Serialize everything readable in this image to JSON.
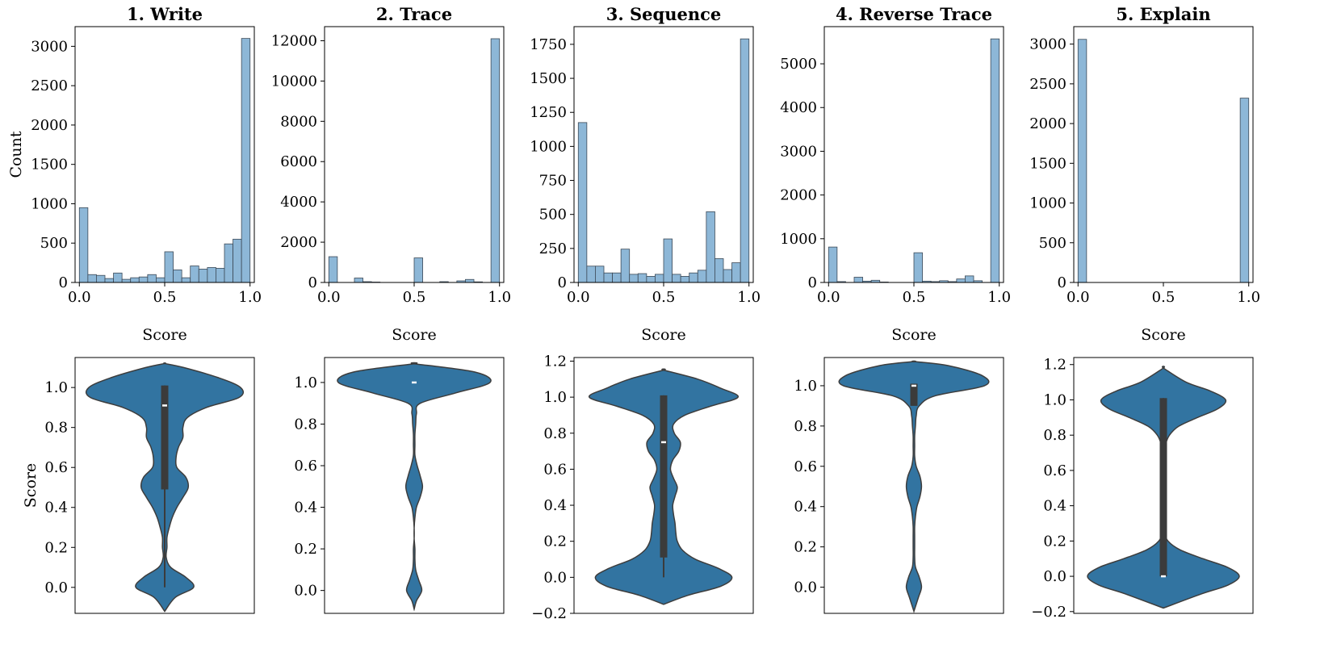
{
  "figure": {
    "background": "#ffffff"
  },
  "colors": {
    "hist_fill": "#8db7d7",
    "hist_edge": "#3d4a57",
    "violin_fill": "#3274a1",
    "violin_edge": "#3d3d3d",
    "box": "#3b3b3b",
    "median": "#ffffff"
  },
  "chart_data": [
    {
      "type": "bar",
      "subtype": "histogram",
      "title": "1. Write",
      "xlabel": "Score",
      "ylabel": "Count",
      "xlim": [
        -0.025,
        1.025
      ],
      "ylim": [
        0,
        3250
      ],
      "xticks": [
        "0.0",
        "0.5",
        "1.0"
      ],
      "yticks": [
        "0",
        "500",
        "1000",
        "1500",
        "2000",
        "2500",
        "3000"
      ],
      "bin_range": [
        0,
        1
      ],
      "values": [
        950,
        100,
        90,
        50,
        120,
        40,
        60,
        70,
        100,
        60,
        390,
        160,
        60,
        210,
        170,
        190,
        180,
        490,
        550,
        3100
      ]
    },
    {
      "type": "bar",
      "subtype": "histogram",
      "title": "2. Trace",
      "xlabel": "Score",
      "ylabel": "",
      "xlim": [
        -0.025,
        1.025
      ],
      "ylim": [
        0,
        12700
      ],
      "xticks": [
        "0.0",
        "0.5",
        "1.0"
      ],
      "yticks": [
        "0",
        "2000",
        "4000",
        "6000",
        "8000",
        "10000",
        "12000"
      ],
      "bin_range": [
        0,
        1
      ],
      "values": [
        1280,
        0,
        0,
        220,
        40,
        20,
        0,
        0,
        0,
        0,
        1220,
        0,
        0,
        40,
        0,
        80,
        150,
        30,
        0,
        12100
      ]
    },
    {
      "type": "bar",
      "subtype": "histogram",
      "title": "3. Sequence",
      "xlabel": "Score",
      "ylabel": "",
      "xlim": [
        -0.025,
        1.025
      ],
      "ylim": [
        0,
        1880
      ],
      "xticks": [
        "0.0",
        "0.5",
        "1.0"
      ],
      "yticks": [
        "0",
        "250",
        "500",
        "750",
        "1000",
        "1250",
        "1500",
        "1750"
      ],
      "bin_range": [
        0,
        1
      ],
      "values": [
        1175,
        120,
        120,
        70,
        70,
        245,
        60,
        65,
        45,
        60,
        320,
        60,
        45,
        70,
        90,
        520,
        175,
        95,
        145,
        1790
      ]
    },
    {
      "type": "bar",
      "subtype": "histogram",
      "title": "4. Reverse Trace",
      "xlabel": "Score",
      "ylabel": "",
      "xlim": [
        -0.025,
        1.025
      ],
      "ylim": [
        0,
        5850
      ],
      "xticks": [
        "0.0",
        "0.5",
        "1.0"
      ],
      "yticks": [
        "0",
        "1000",
        "2000",
        "3000",
        "4000",
        "5000"
      ],
      "bin_range": [
        0,
        1
      ],
      "values": [
        810,
        20,
        0,
        120,
        30,
        50,
        10,
        0,
        0,
        0,
        680,
        30,
        20,
        40,
        20,
        80,
        150,
        40,
        0,
        5570
      ]
    },
    {
      "type": "bar",
      "subtype": "histogram",
      "title": "5. Explain",
      "xlabel": "Score",
      "ylabel": "",
      "xlim": [
        -0.025,
        1.025
      ],
      "ylim": [
        0,
        3220
      ],
      "xticks": [
        "0.0",
        "0.5",
        "1.0"
      ],
      "yticks": [
        "0",
        "500",
        "1000",
        "1500",
        "2000",
        "2500",
        "3000"
      ],
      "bin_range": [
        0,
        1
      ],
      "values": [
        3060,
        0,
        0,
        0,
        0,
        0,
        0,
        0,
        0,
        0,
        0,
        0,
        0,
        0,
        0,
        0,
        0,
        0,
        0,
        2320
      ]
    },
    {
      "type": "violin",
      "ylabel": "Score",
      "ylim": [
        -0.13,
        1.15
      ],
      "yticks": [
        "0.0",
        "0.2",
        "0.4",
        "0.6",
        "0.8",
        "1.0"
      ],
      "density": {
        "y": [
          -0.12,
          -0.05,
          0.0,
          0.05,
          0.1,
          0.15,
          0.2,
          0.25,
          0.3,
          0.35,
          0.4,
          0.45,
          0.5,
          0.55,
          0.6,
          0.65,
          0.7,
          0.75,
          0.8,
          0.85,
          0.9,
          0.95,
          1.0,
          1.05,
          1.1,
          1.12
        ],
        "width": [
          0.0,
          0.14,
          0.38,
          0.28,
          0.08,
          0.02,
          0.03,
          0.03,
          0.06,
          0.1,
          0.16,
          0.24,
          0.31,
          0.28,
          0.16,
          0.15,
          0.18,
          0.24,
          0.24,
          0.3,
          0.55,
          0.98,
          1.0,
          0.7,
          0.25,
          0.0
        ]
      },
      "whisker": [
        0.0,
        1.01
      ],
      "box": [
        0.49,
        1.01
      ],
      "median": 0.91
    },
    {
      "type": "violin",
      "ylabel": "",
      "ylim": [
        -0.11,
        1.12
      ],
      "yticks": [
        "0.0",
        "0.2",
        "0.4",
        "0.6",
        "0.8",
        "1.0"
      ],
      "density": {
        "y": [
          -0.09,
          -0.05,
          0.0,
          0.05,
          0.1,
          0.15,
          0.2,
          0.25,
          0.3,
          0.35,
          0.4,
          0.45,
          0.5,
          0.55,
          0.6,
          0.65,
          0.7,
          0.75,
          0.8,
          0.85,
          0.9,
          0.95,
          1.0,
          1.05,
          1.09
        ],
        "width": [
          0.0,
          0.03,
          0.1,
          0.06,
          0.02,
          0.01,
          0.01,
          0.0,
          0.0,
          0.01,
          0.03,
          0.08,
          0.11,
          0.08,
          0.04,
          0.01,
          0.01,
          0.01,
          0.02,
          0.03,
          0.08,
          0.55,
          1.0,
          0.8,
          0.0
        ]
      },
      "whisker": [
        1.0,
        1.0
      ],
      "box": [
        1.0,
        1.0
      ],
      "median": 1.0
    },
    {
      "type": "violin",
      "ylabel": "",
      "ylim": [
        -0.2,
        1.22
      ],
      "yticks": [
        "−0.2",
        "0.0",
        "0.2",
        "0.4",
        "0.6",
        "0.8",
        "1.0",
        "1.2"
      ],
      "density": {
        "y": [
          -0.15,
          -0.1,
          -0.05,
          0.0,
          0.05,
          0.1,
          0.15,
          0.2,
          0.25,
          0.3,
          0.35,
          0.4,
          0.45,
          0.5,
          0.55,
          0.6,
          0.65,
          0.7,
          0.75,
          0.8,
          0.85,
          0.9,
          0.95,
          1.0,
          1.05,
          1.1,
          1.15
        ],
        "width": [
          0.0,
          0.32,
          0.75,
          0.9,
          0.72,
          0.42,
          0.25,
          0.18,
          0.16,
          0.15,
          0.13,
          0.12,
          0.15,
          0.18,
          0.13,
          0.09,
          0.12,
          0.2,
          0.22,
          0.14,
          0.13,
          0.28,
          0.62,
          0.98,
          0.75,
          0.45,
          0.0
        ]
      },
      "whisker": [
        0.0,
        1.01
      ],
      "box": [
        0.11,
        1.01
      ],
      "median": 0.75
    },
    {
      "type": "violin",
      "ylabel": "",
      "ylim": [
        -0.13,
        1.14
      ],
      "yticks": [
        "0.0",
        "0.2",
        "0.4",
        "0.6",
        "0.8",
        "1.0"
      ],
      "density": {
        "y": [
          -0.12,
          -0.05,
          0.0,
          0.05,
          0.1,
          0.15,
          0.2,
          0.25,
          0.3,
          0.35,
          0.4,
          0.45,
          0.5,
          0.55,
          0.6,
          0.65,
          0.7,
          0.75,
          0.8,
          0.85,
          0.9,
          0.95,
          1.0,
          1.05,
          1.1,
          1.12
        ],
        "width": [
          0.0,
          0.06,
          0.1,
          0.07,
          0.02,
          0.01,
          0.01,
          0.01,
          0.01,
          0.02,
          0.04,
          0.08,
          0.1,
          0.08,
          0.03,
          0.01,
          0.01,
          0.01,
          0.02,
          0.03,
          0.07,
          0.28,
          0.93,
          0.9,
          0.45,
          0.0
        ]
      },
      "whisker": [
        0.91,
        1.01
      ],
      "box": [
        0.9,
        1.01
      ],
      "median": 1.0
    },
    {
      "type": "violin",
      "ylabel": "",
      "ylim": [
        -0.21,
        1.24
      ],
      "yticks": [
        "−0.2",
        "0.0",
        "0.2",
        "0.4",
        "0.6",
        "0.8",
        "1.0",
        "1.2"
      ],
      "density": {
        "y": [
          -0.18,
          -0.1,
          -0.05,
          0.0,
          0.05,
          0.1,
          0.15,
          0.2,
          0.25,
          0.3,
          0.35,
          0.4,
          0.45,
          0.5,
          0.55,
          0.6,
          0.65,
          0.7,
          0.75,
          0.8,
          0.85,
          0.9,
          0.95,
          1.0,
          1.05,
          1.1,
          1.18
        ],
        "width": [
          0.0,
          0.5,
          0.85,
          1.0,
          0.85,
          0.52,
          0.22,
          0.06,
          0.015,
          0.01,
          0.01,
          0.01,
          0.01,
          0.01,
          0.01,
          0.01,
          0.01,
          0.015,
          0.03,
          0.08,
          0.2,
          0.45,
          0.72,
          0.82,
          0.62,
          0.3,
          0.0
        ]
      },
      "whisker": [
        0.0,
        1.01
      ],
      "box": [
        0.0,
        1.01
      ],
      "median": 0.0
    }
  ]
}
